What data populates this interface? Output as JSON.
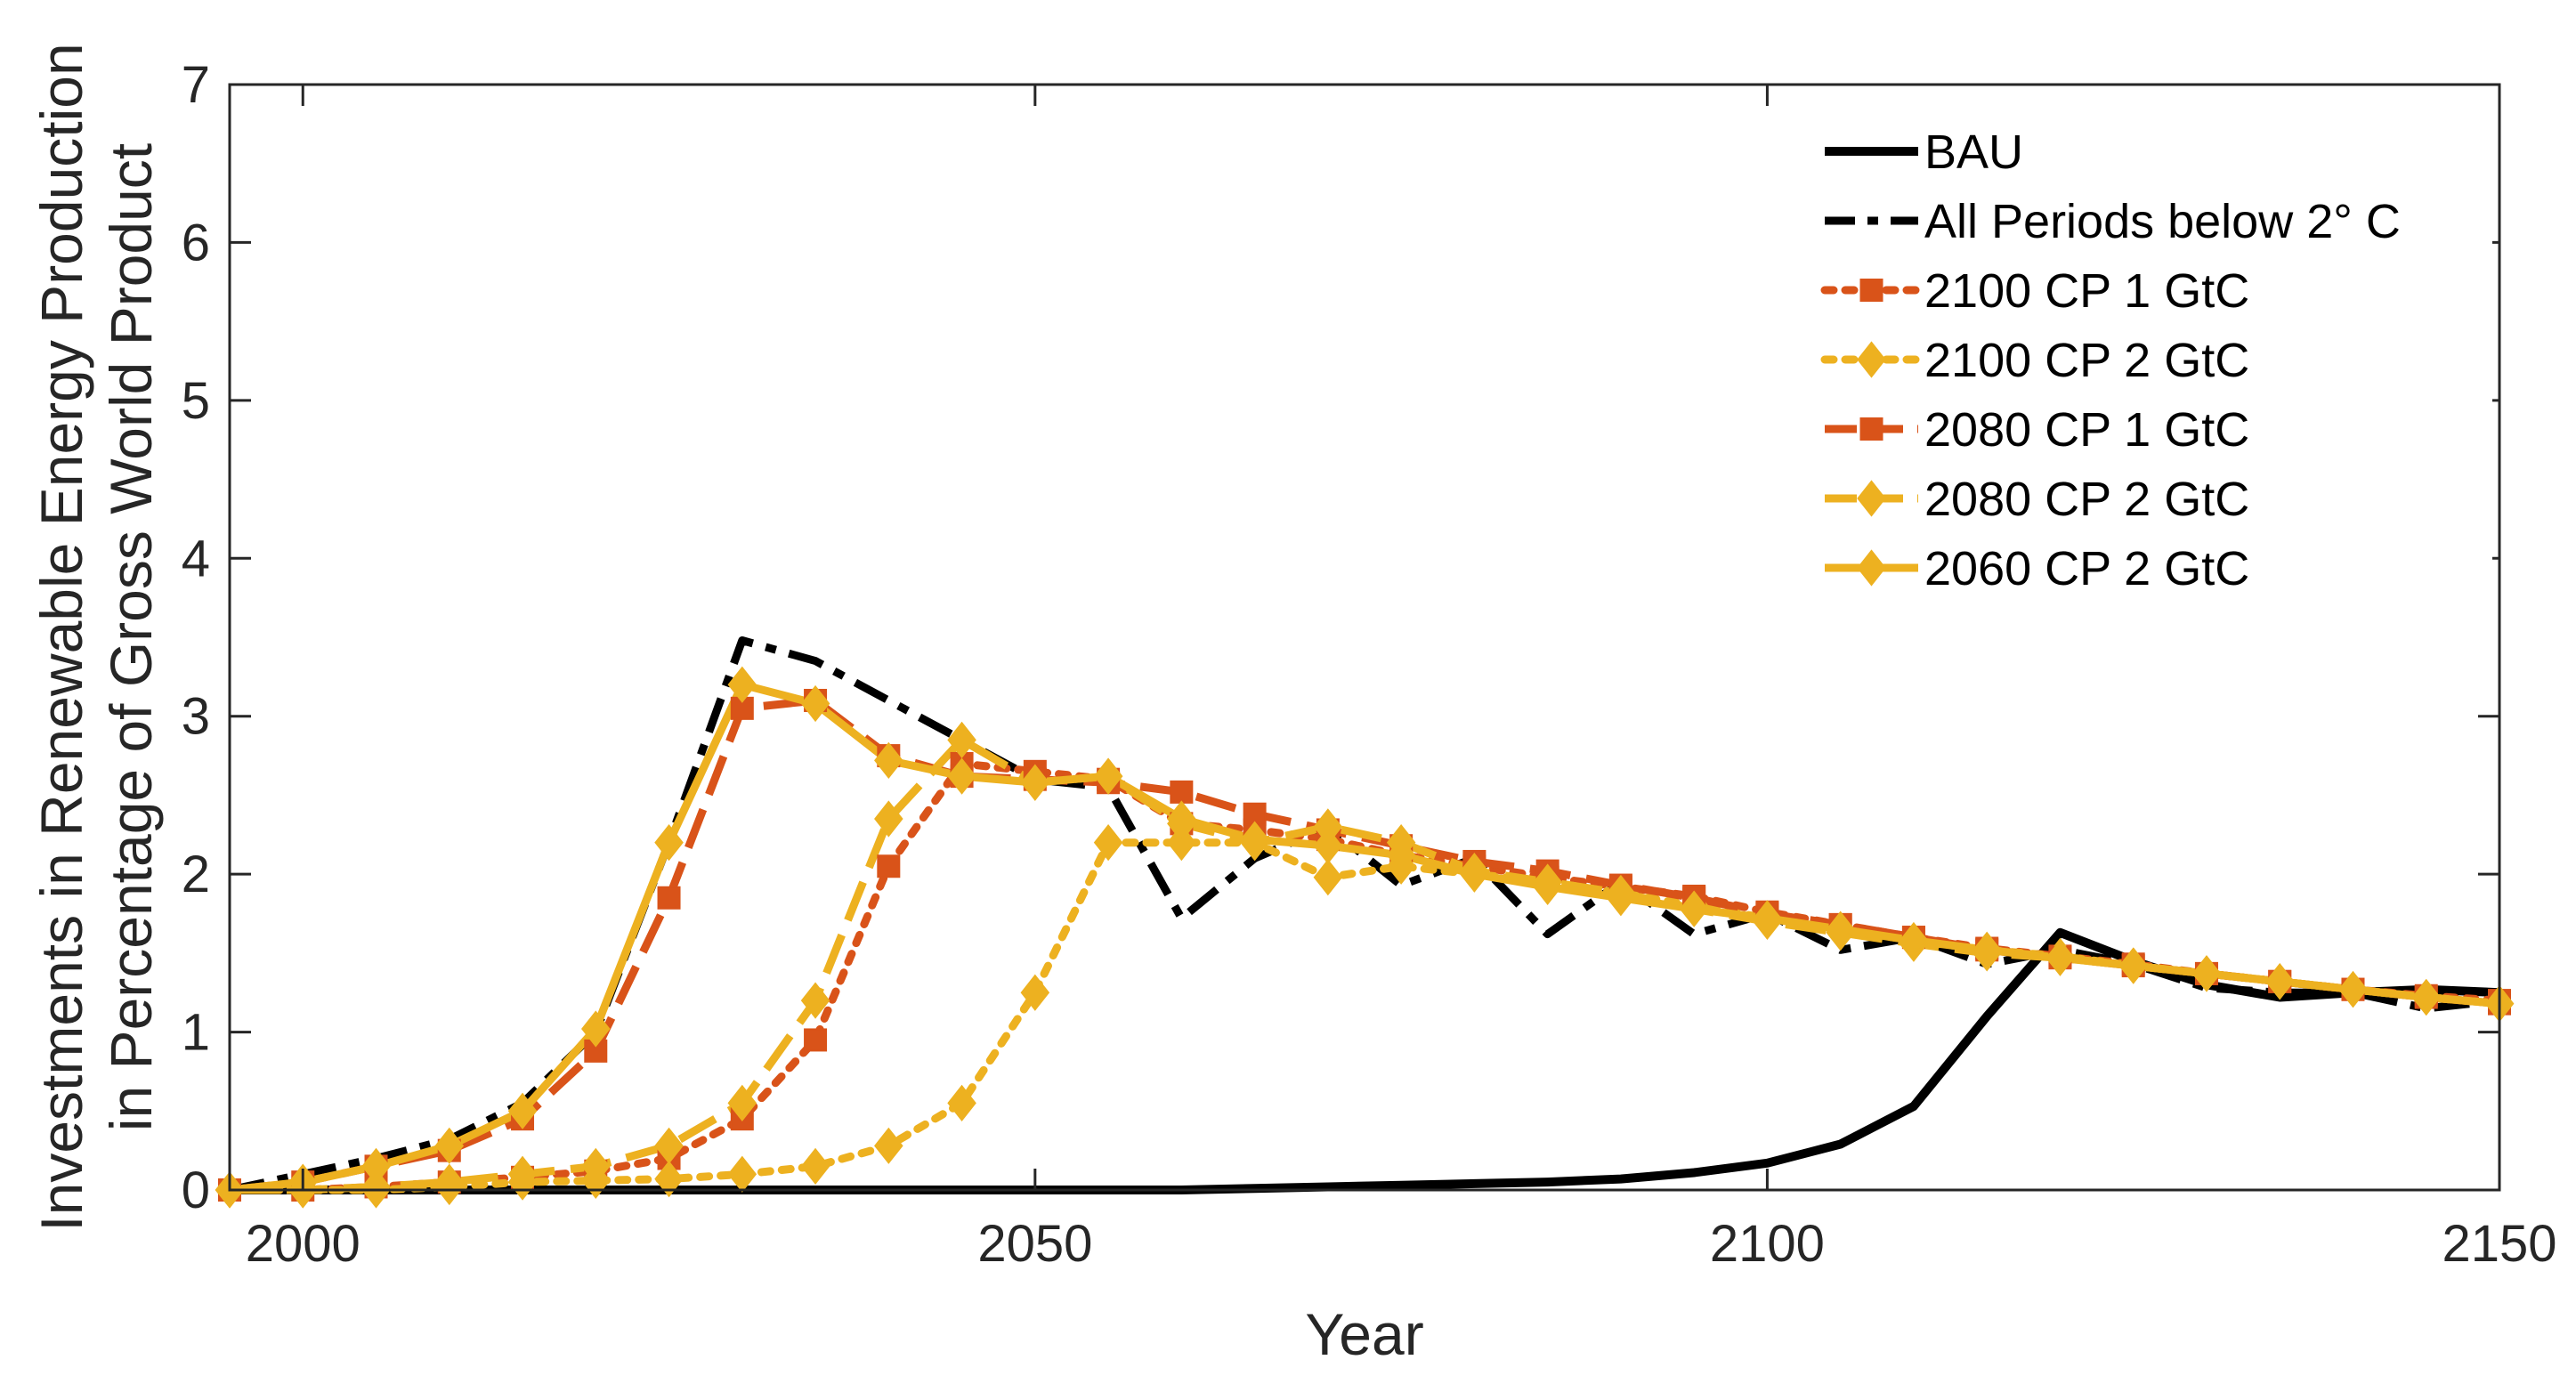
{
  "chart_data": {
    "type": "line",
    "title": "",
    "xlabel": "Year",
    "ylabel_line1": "Investments in Renewable Energy Production",
    "ylabel_line2": "in Percentage of Gross World Product",
    "xlim": [
      1995,
      2150
    ],
    "ylim": [
      0,
      7
    ],
    "xticks": [
      2000,
      2050,
      2100,
      2150
    ],
    "yticks": [
      0,
      1,
      2,
      3,
      4,
      5,
      6,
      7
    ],
    "grid": false,
    "legend_position": "top-right",
    "x": [
      1995,
      2000,
      2005,
      2010,
      2015,
      2020,
      2025,
      2030,
      2035,
      2040,
      2045,
      2050,
      2055,
      2060,
      2065,
      2070,
      2075,
      2080,
      2085,
      2090,
      2095,
      2100,
      2105,
      2110,
      2115,
      2120,
      2125,
      2130,
      2135,
      2140,
      2145,
      2150
    ],
    "series": [
      {
        "name": "BAU",
        "color": "#000000",
        "style": "solid",
        "marker": "none",
        "values": [
          0,
          0,
          0,
          0,
          0,
          0,
          0,
          0,
          0,
          0,
          0,
          0,
          0,
          0,
          0.01,
          0.02,
          0.03,
          0.04,
          0.05,
          0.07,
          0.11,
          0.17,
          0.29,
          0.53,
          1.1,
          1.63,
          1.45,
          1.3,
          1.22,
          1.25,
          1.27,
          1.25
        ]
      },
      {
        "name": "All Periods below 2° C",
        "color": "#000000",
        "style": "dashdot",
        "marker": "none",
        "values": [
          0,
          0.1,
          0.2,
          0.32,
          0.55,
          1.0,
          2.2,
          3.48,
          3.35,
          3.1,
          2.85,
          2.6,
          2.55,
          1.72,
          2.1,
          2.3,
          1.93,
          2.1,
          1.62,
          1.95,
          1.62,
          1.75,
          1.52,
          1.6,
          1.43,
          1.52,
          1.43,
          1.28,
          1.25,
          1.25,
          1.15,
          1.2
        ]
      },
      {
        "name": "2100 CP 1 GtC",
        "color": "#d95319",
        "style": "dotted",
        "marker": "square",
        "values": [
          0,
          0,
          0.02,
          0.05,
          0.08,
          0.12,
          0.2,
          0.45,
          0.95,
          2.05,
          2.7,
          2.65,
          2.6,
          2.32,
          2.28,
          2.22,
          2.12,
          2.05,
          1.98,
          1.92,
          1.86,
          1.76,
          1.68,
          1.6,
          1.53,
          1.48,
          1.43,
          1.37,
          1.32,
          1.27,
          1.23,
          1.2
        ]
      },
      {
        "name": "2100 CP 2 GtC",
        "color": "#edb120",
        "style": "dotted",
        "marker": "diamond",
        "values": [
          0,
          0,
          0,
          0.02,
          0.05,
          0.06,
          0.07,
          0.1,
          0.15,
          0.28,
          0.55,
          1.25,
          2.2,
          2.2,
          2.2,
          1.98,
          2.05,
          2.0,
          1.95,
          1.88,
          1.8,
          1.72,
          1.65,
          1.58,
          1.52,
          1.48,
          1.42,
          1.37,
          1.32,
          1.27,
          1.22,
          1.18
        ]
      },
      {
        "name": "2080 CP 1 GtC",
        "color": "#d95319",
        "style": "dashed",
        "marker": "square",
        "values": [
          0,
          0.05,
          0.15,
          0.25,
          0.45,
          0.88,
          1.85,
          3.05,
          3.1,
          2.75,
          2.62,
          2.6,
          2.58,
          2.52,
          2.38,
          2.28,
          2.18,
          2.08,
          2.02,
          1.93,
          1.85,
          1.75,
          1.68,
          1.6,
          1.52,
          1.47,
          1.42,
          1.37,
          1.32,
          1.27,
          1.22,
          1.18
        ]
      },
      {
        "name": "2080 CP 2 GtC",
        "color": "#edb120",
        "style": "dashed",
        "marker": "diamond",
        "values": [
          0,
          0,
          0.02,
          0.05,
          0.1,
          0.15,
          0.28,
          0.55,
          1.2,
          2.35,
          2.85,
          2.58,
          2.62,
          2.32,
          2.2,
          2.3,
          2.2,
          2.02,
          1.95,
          1.88,
          1.78,
          1.7,
          1.63,
          1.56,
          1.5,
          1.47,
          1.42,
          1.37,
          1.32,
          1.27,
          1.22,
          1.18
        ]
      },
      {
        "name": "2060 CP 2 GtC",
        "color": "#edb120",
        "style": "solid",
        "marker": "diamond",
        "values": [
          0,
          0.05,
          0.15,
          0.28,
          0.5,
          1.02,
          2.2,
          3.2,
          3.08,
          2.72,
          2.62,
          2.58,
          2.62,
          2.35,
          2.22,
          2.18,
          2.12,
          2.0,
          1.92,
          1.85,
          1.78,
          1.72,
          1.65,
          1.58,
          1.52,
          1.47,
          1.42,
          1.37,
          1.32,
          1.27,
          1.22,
          1.18
        ]
      }
    ]
  }
}
